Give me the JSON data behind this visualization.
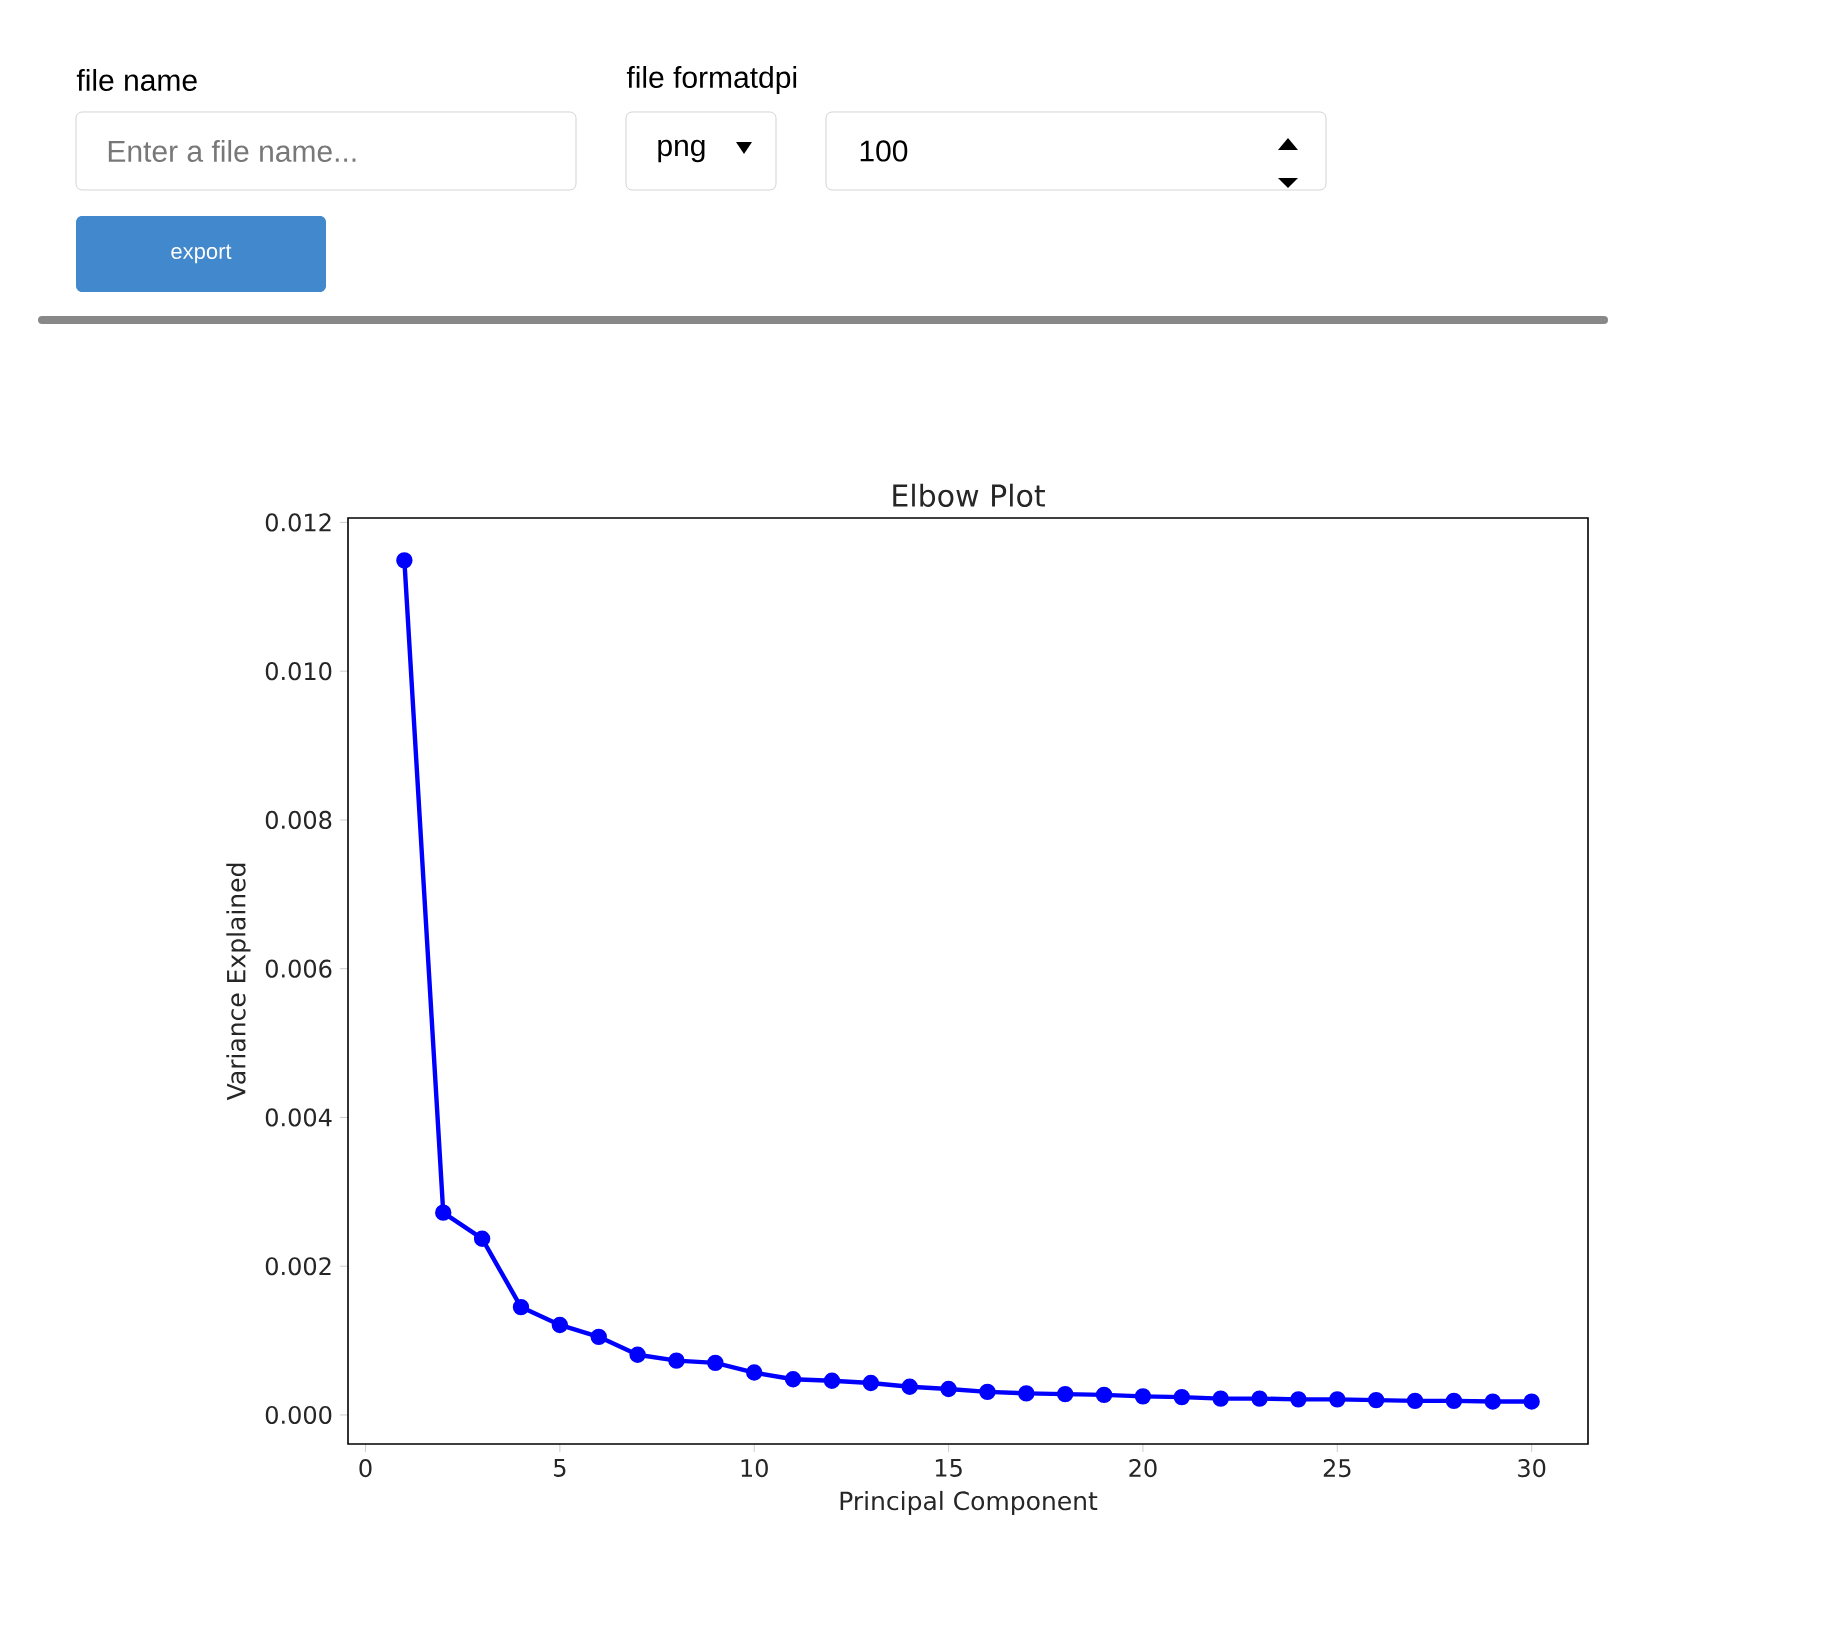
{
  "chart_data": {
    "type": "line",
    "title": "Elbow Plot",
    "xlabel": "Principal Component",
    "ylabel": "Variance Explained",
    "x": [
      1,
      2,
      3,
      4,
      5,
      6,
      7,
      8,
      9,
      10,
      11,
      12,
      13,
      14,
      15,
      16,
      17,
      18,
      19,
      20,
      21,
      22,
      23,
      24,
      25,
      26,
      27,
      28,
      29,
      30
    ],
    "series": [
      {
        "color": "#0000ff",
        "values": [
          0.01149,
          0.00272,
          0.00237,
          0.00145,
          0.00121,
          0.00105,
          0.00081,
          0.00073,
          0.0007,
          0.00057,
          0.00048,
          0.00046,
          0.00043,
          0.00038,
          0.00035,
          0.00031,
          0.00029,
          0.00028,
          0.00027,
          0.00025,
          0.00024,
          0.00022,
          0.00022,
          0.00021,
          0.00021,
          0.0002,
          0.00019,
          0.00019,
          0.00018,
          0.00018
        ]
      }
    ],
    "xlim": [
      -0.45,
      31.45
    ],
    "ylim": [
      -0.00039,
      0.01206
    ],
    "xticks": [
      0,
      5,
      10,
      15,
      20,
      25,
      30
    ],
    "yticks": [
      {
        "value": 0,
        "label": "0.000"
      },
      {
        "value": 0.002,
        "label": "0.002"
      },
      {
        "value": 0.004,
        "label": "0.004"
      },
      {
        "value": 0.006,
        "label": "0.006"
      },
      {
        "value": 0.008,
        "label": "0.008"
      },
      {
        "value": 0.01,
        "label": "0.010"
      },
      {
        "value": 0.012,
        "label": "0.012"
      }
    ],
    "grid": false,
    "marker": "circle",
    "line_style": "solid",
    "annotations": [
      "file name",
      "Enter a file name...",
      "file formatdpi",
      "png",
      "100",
      "export"
    ]
  }
}
